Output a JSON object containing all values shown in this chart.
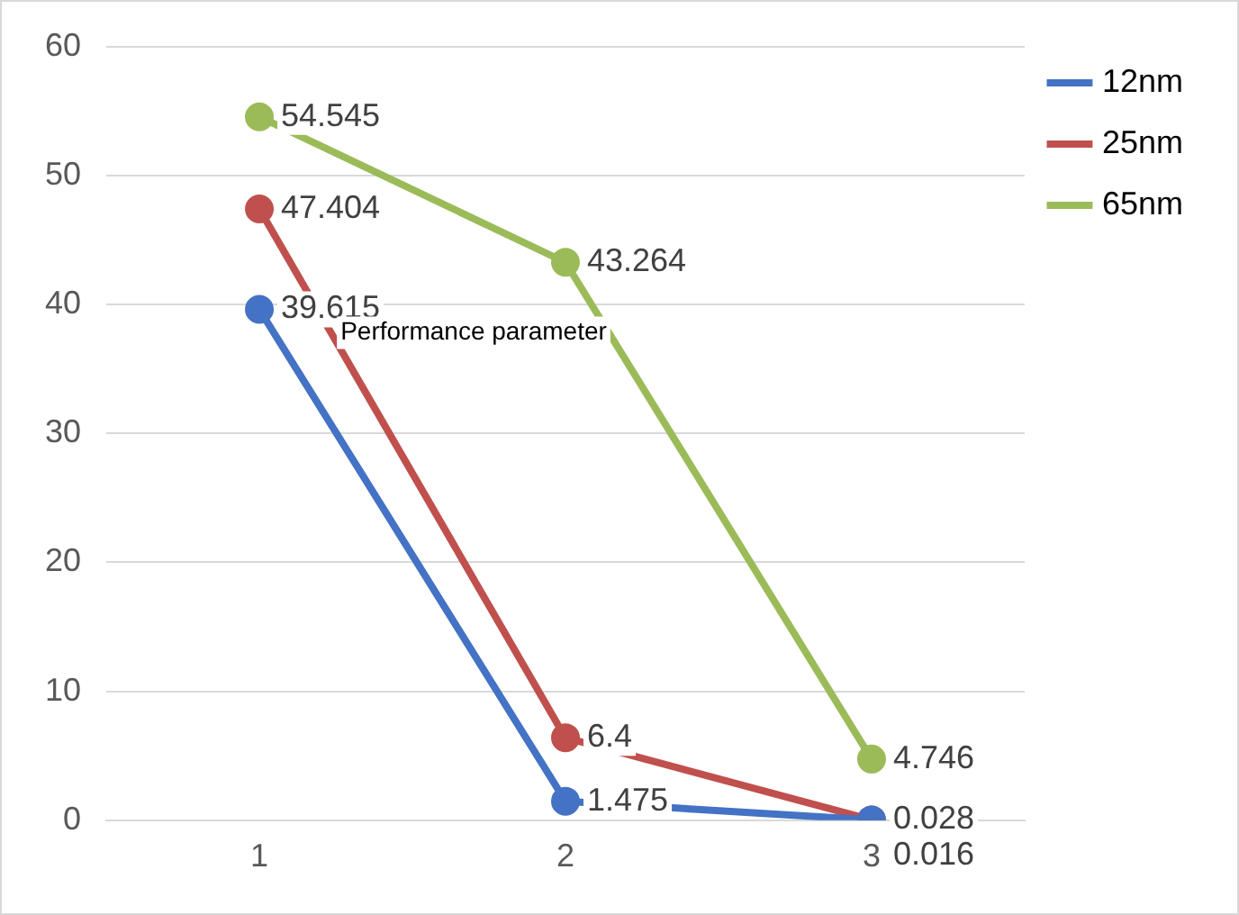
{
  "chart_data": {
    "type": "line",
    "categories": [
      "1",
      "2",
      "3"
    ],
    "series": [
      {
        "name": "12nm",
        "color": "#4472c4",
        "values": [
          39.615,
          1.475,
          0.016
        ]
      },
      {
        "name": "25nm",
        "color": "#c0504d",
        "values": [
          47.404,
          6.4,
          0.028
        ]
      },
      {
        "name": "65nm",
        "color": "#9bbb59",
        "values": [
          54.545,
          43.264,
          4.746
        ]
      }
    ],
    "ylim": [
      0,
      60
    ],
    "yticks": [
      0,
      10,
      20,
      30,
      40,
      50,
      60
    ],
    "grid": "y",
    "legend": "right",
    "marker": "circle",
    "line_style": "solid",
    "data_labels": true,
    "annotations": [
      "Performance parameter"
    ]
  }
}
